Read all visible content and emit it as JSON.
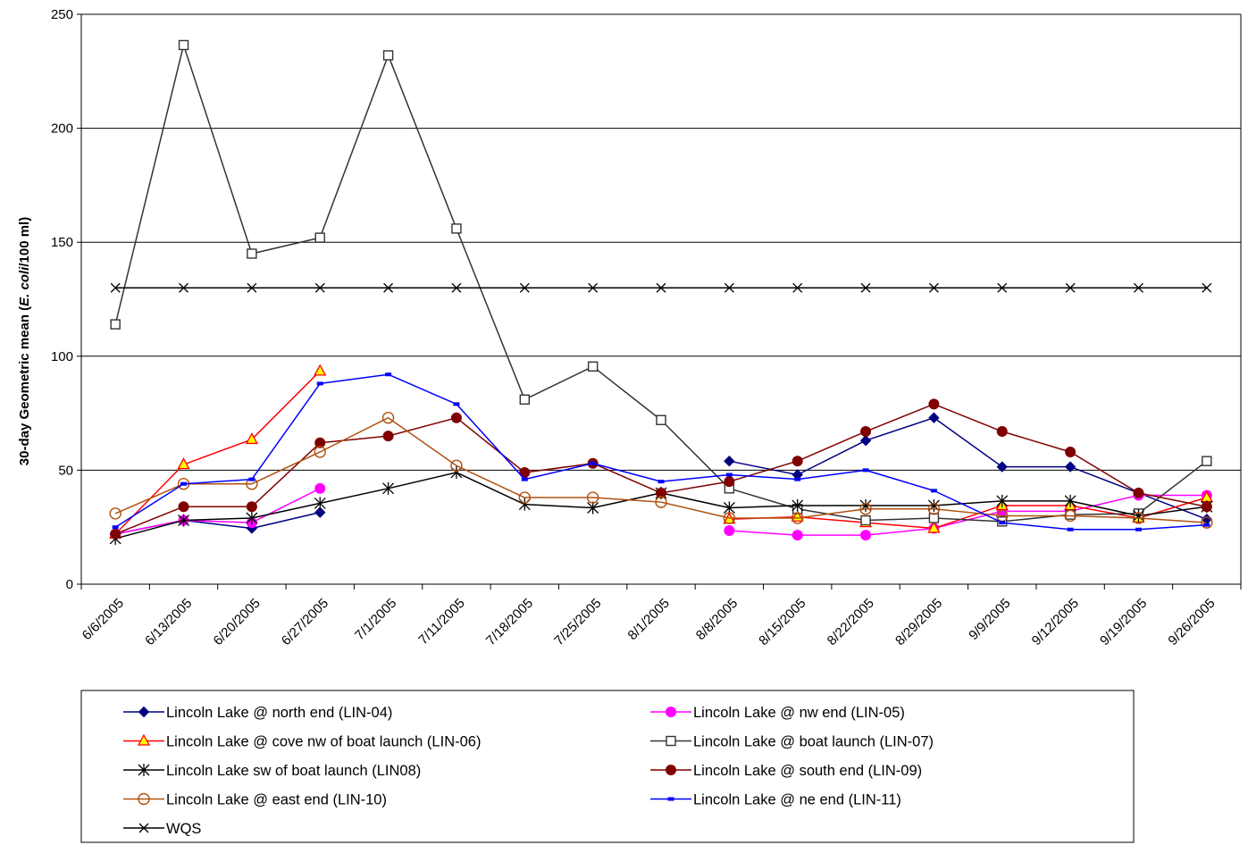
{
  "chart_data": {
    "type": "line",
    "title": "",
    "xlabel": "",
    "ylabel_parts": [
      "30-day Geometric mean (",
      "E. coli",
      "/100 ml)"
    ],
    "ylim": [
      0,
      250
    ],
    "yticks": [
      0,
      50,
      100,
      150,
      200,
      250
    ],
    "grid": true,
    "legend_position": "bottom",
    "categories": [
      "6/6/2005",
      "6/13/2005",
      "6/20/2005",
      "6/27/2005",
      "7/1/2005",
      "7/11/2005",
      "7/18/2005",
      "7/25/2005",
      "8/1/2005",
      "8/8/2005",
      "8/15/2005",
      "8/22/2005",
      "8/29/2005",
      "9/9/2005",
      "9/12/2005",
      "9/19/2005",
      "9/26/2005"
    ],
    "series": [
      {
        "name": "Lincoln Lake @ north end (LIN-04)",
        "color": "#000080",
        "marker": "diamond",
        "values": [
          22,
          28,
          24.5,
          31.5,
          null,
          null,
          null,
          null,
          null,
          54,
          48,
          63,
          73,
          51.5,
          51.5,
          40,
          28.5
        ]
      },
      {
        "name": "Lincoln Lake @ nw end (LIN-05)",
        "color": "#FF00FF",
        "marker": "circle",
        "values": [
          22,
          28,
          27,
          42,
          null,
          null,
          null,
          null,
          null,
          23.5,
          21.5,
          21.5,
          24.5,
          32,
          32,
          39,
          39
        ]
      },
      {
        "name": "Lincoln Lake @ cove nw of boat launch (LIN-06)",
        "color": "#FF0000",
        "marker": "triangle",
        "values": [
          22,
          52.5,
          63.5,
          93.5,
          null,
          null,
          null,
          null,
          null,
          28.5,
          29.5,
          27,
          24.5,
          34.5,
          34.5,
          29,
          38
        ]
      },
      {
        "name": "Lincoln Lake @ boat launch (LIN-07)",
        "color": "#333333",
        "marker": "square",
        "values": [
          114,
          236.5,
          145,
          152,
          232,
          156,
          81,
          95.5,
          72,
          42,
          33,
          28,
          29,
          27.5,
          30.5,
          31,
          54
        ]
      },
      {
        "name": "Lincoln Lake sw of boat launch (LIN08)",
        "color": "#000000",
        "marker": "star",
        "values": [
          20,
          28,
          29,
          35.5,
          42,
          49,
          35,
          33.5,
          40,
          33.5,
          34.5,
          34.5,
          34.5,
          36.5,
          36.5,
          30,
          34
        ]
      },
      {
        "name": "Lincoln Lake @ south end (LIN-09)",
        "color": "#800000",
        "marker": "circle",
        "values": [
          22,
          34,
          34,
          62,
          65,
          73,
          49,
          53,
          40,
          45,
          54,
          67,
          79,
          67,
          58,
          40,
          34
        ]
      },
      {
        "name": "Lincoln Lake @ east end (LIN-10)",
        "color": "#B05010",
        "marker": "open-circle",
        "values": [
          31,
          44,
          44,
          58,
          73,
          52,
          38,
          38,
          36,
          29,
          29,
          33,
          33,
          30,
          30,
          29,
          27
        ]
      },
      {
        "name": "Lincoln Lake @ ne end (LIN-11)",
        "color": "#0000FF",
        "marker": "dash",
        "values": [
          25,
          44,
          46,
          88,
          92,
          79,
          46,
          53,
          45,
          48,
          46,
          50,
          41,
          27,
          24,
          24,
          26
        ]
      },
      {
        "name": "WQS",
        "color": "#000000",
        "marker": "x",
        "values": [
          130,
          130,
          130,
          130,
          130,
          130,
          130,
          130,
          130,
          130,
          130,
          130,
          130,
          130,
          130,
          130,
          130
        ]
      }
    ]
  }
}
